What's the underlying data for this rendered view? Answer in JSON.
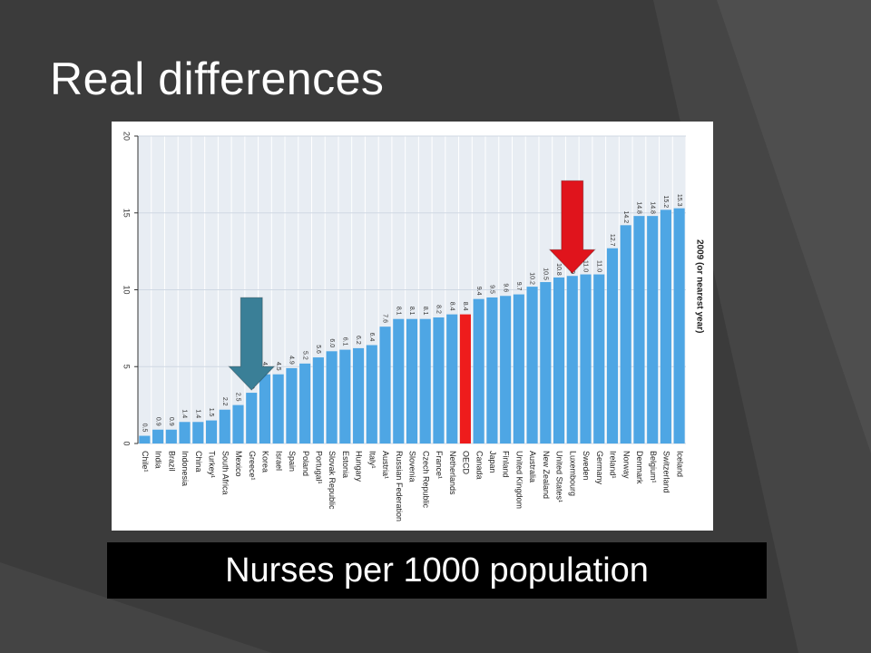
{
  "slide": {
    "title": "Real differences",
    "caption": "Nurses per 1000 population"
  },
  "colors": {
    "bar": "#4ea6e4",
    "highlight_bar": "#ee1c1c",
    "red_arrow": "#e0141c",
    "teal_arrow": "#3a7f97",
    "background": "#3b3b3b"
  },
  "chart_data": {
    "type": "bar",
    "orientation": "vertical (rotated slide view)",
    "series_label": "2009 (or nearest year)",
    "ylim": [
      0,
      20
    ],
    "yticks": [
      "0",
      "5",
      "10",
      "15",
      "20"
    ],
    "grid": true,
    "highlight_category": "OECD",
    "categories": [
      "Chile¹",
      "India",
      "Brazil",
      "Indonesia",
      "China",
      "Turkey¹",
      "South Africa",
      "Mexico",
      "Greece¹",
      "Korea",
      "Israel",
      "Spain",
      "Poland",
      "Portugal¹",
      "Slovak Republic",
      "Estonia",
      "Hungary",
      "Italy¹",
      "Austria¹",
      "Russian Federation",
      "Slovenia",
      "Czech Republic",
      "France¹",
      "Netherlands",
      "OECD",
      "Canada",
      "Japan",
      "Finland",
      "United Kingdom",
      "Australia",
      "New Zealand",
      "United States¹",
      "Luxembourg",
      "Sweden",
      "Germany",
      "Ireland¹",
      "Norway",
      "Denmark",
      "Belgium¹",
      "Switzerland",
      "Iceland"
    ],
    "values": [
      0.5,
      0.9,
      0.9,
      1.4,
      1.4,
      1.5,
      2.2,
      2.5,
      3.3,
      4.5,
      4.5,
      4.9,
      5.2,
      5.6,
      6.0,
      6.1,
      6.2,
      6.4,
      7.6,
      8.1,
      8.1,
      8.1,
      8.2,
      8.4,
      8.4,
      9.4,
      9.5,
      9.6,
      9.7,
      10.2,
      10.5,
      10.8,
      10.9,
      11.0,
      11.0,
      12.7,
      14.2,
      14.8,
      14.8,
      15.2,
      15.3
    ],
    "value_labels": [
      "0.5",
      "0.9",
      "0.9",
      "1.4",
      "1.4",
      "1.5",
      "2.2",
      "2.5",
      "3.3",
      "4.5",
      "4.5",
      "4.9",
      "5.2",
      "5.6",
      "6.0",
      "6.1",
      "6.2",
      "6.4",
      "7.6",
      "8.1",
      "8.1",
      "8.1",
      "8.2",
      "8.4",
      "8.4",
      "9.4",
      "9.5",
      "9.6",
      "9.7",
      "10.2",
      "10.5",
      "10.8",
      "10.9",
      "11.0",
      "11.0",
      "12.7",
      "14.2",
      "14.8",
      "14.8",
      "15.2",
      "15.3"
    ],
    "annotations": [
      {
        "type": "arrow",
        "color": "teal",
        "points_to": "Greece¹"
      },
      {
        "type": "arrow",
        "color": "red",
        "points_to": "Luxembourg"
      }
    ]
  }
}
